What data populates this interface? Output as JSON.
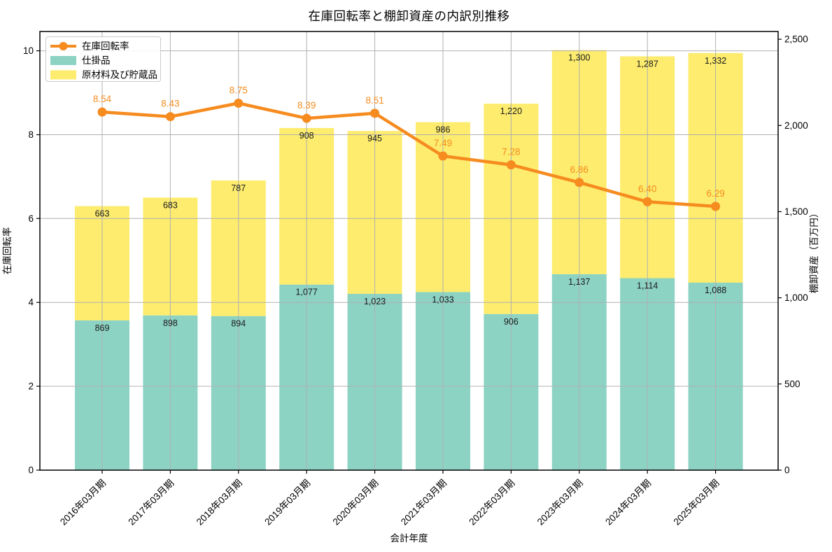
{
  "figure": {
    "title": "在庫回転率と棚卸資産の内訳別推移"
  },
  "chart_data": {
    "type": "bar",
    "subtype": "stacked_bars_with_line_dual_axis",
    "title": "在庫回転率と棚卸資産の内訳別推移",
    "categories": [
      "2016年03月期",
      "2017年03月期",
      "2018年03月期",
      "2019年03月期",
      "2020年03月期",
      "2021年03月期",
      "2022年03月期",
      "2023年03月期",
      "2024年03月期",
      "2025年03月期"
    ],
    "series": [
      {
        "name": "在庫回転率",
        "kind": "line",
        "axis": "left",
        "color": "#F68B1F",
        "values": [
          8.54,
          8.43,
          8.75,
          8.39,
          8.51,
          7.49,
          7.28,
          6.86,
          6.4,
          6.29
        ]
      },
      {
        "name": "仕掛品",
        "kind": "bar",
        "axis": "right",
        "color": "#8CD3C4",
        "values": [
          869,
          898,
          894,
          1077,
          1023,
          1033,
          906,
          1137,
          1114,
          1088
        ]
      },
      {
        "name": "原材料及び貯蔵品",
        "kind": "bar",
        "axis": "right",
        "color": "#FDEC6E",
        "values": [
          663,
          683,
          787,
          908,
          945,
          986,
          1220,
          1300,
          1287,
          1332
        ]
      }
    ],
    "xlabel": "会計年度",
    "ylabel_left": "在庫回転率",
    "ylabel_right": "棚卸資産（百万円）",
    "ylim_left": [
      0,
      10.46
    ],
    "ylim_right": [
      0,
      2545
    ],
    "yticks_left": [
      "0",
      "2",
      "4",
      "6",
      "8",
      "10"
    ],
    "yticks_left_values": [
      0,
      2,
      4,
      6,
      8,
      10
    ],
    "yticks_right": [
      "0",
      "500",
      "1,000",
      "1,500",
      "2,000",
      "2,500"
    ],
    "yticks_right_values": [
      0,
      500,
      1000,
      1500,
      2000,
      2500
    ],
    "legend": {
      "position": "upper left",
      "items": [
        "在庫回転率",
        "仕掛品",
        "原材料及び貯蔵品"
      ]
    },
    "grid": true,
    "grid_color": "#b0b0b0",
    "x_tick_rotation_deg": 45
  }
}
